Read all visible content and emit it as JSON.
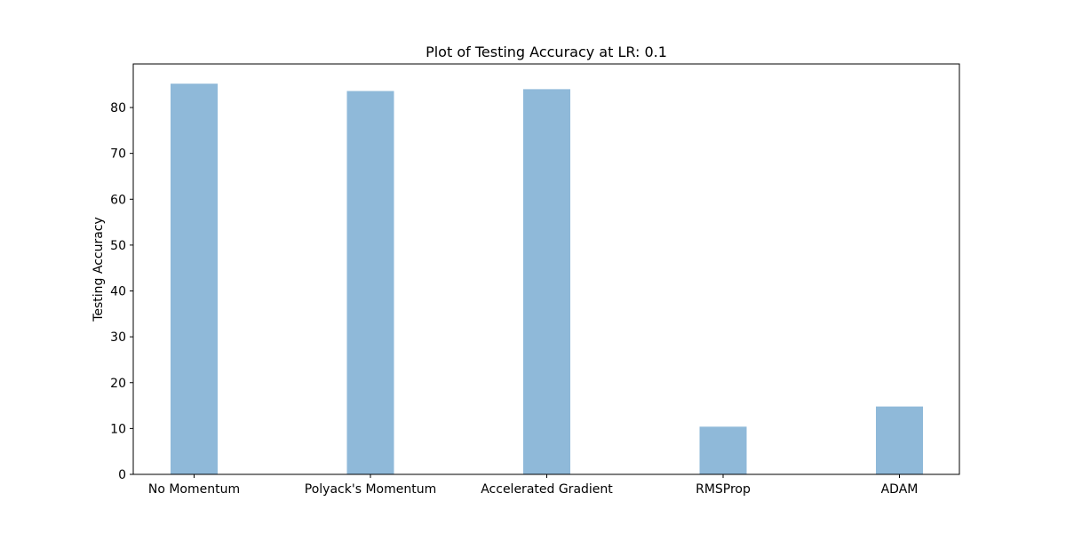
{
  "chart_data": {
    "type": "bar",
    "title": "Plot of Testing Accuracy at LR: 0.1",
    "xlabel": "",
    "ylabel": "Testing Accuracy",
    "categories": [
      "No Momentum",
      "Polyack's Momentum",
      "Accelerated Gradient",
      "RMSProp",
      "ADAM"
    ],
    "values": [
      85.2,
      83.6,
      84.0,
      10.4,
      14.8
    ],
    "ylim": [
      0,
      89.5
    ],
    "yticks": [
      0,
      10,
      20,
      30,
      40,
      50,
      60,
      70,
      80
    ],
    "bar_color": "#8fb9d9",
    "grid": false,
    "legend": "none"
  }
}
